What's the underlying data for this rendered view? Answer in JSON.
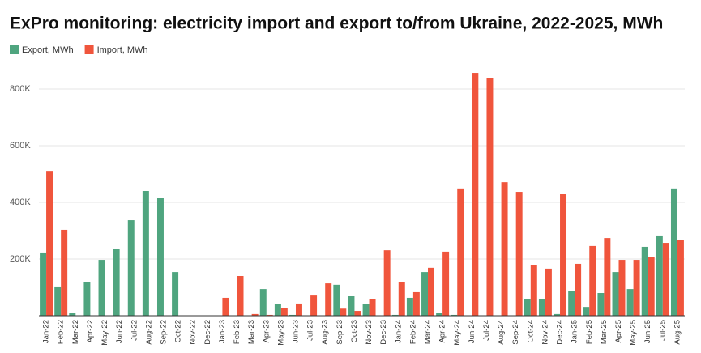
{
  "chart_data": {
    "type": "bar",
    "title": "ExPro monitoring: electricity import and export to/from Ukraine, 2022-2025, MWh",
    "categories": [
      "Jan-22",
      "Feb-22",
      "Mar-22",
      "Apr-22",
      "May-22",
      "Jun-22",
      "Jul-22",
      "Aug-22",
      "Sep-22",
      "Oct-22",
      "Nov-22",
      "Dec-22",
      "Jan-23",
      "Feb-23",
      "Mar-23",
      "Apr-23",
      "May-23",
      "Jun-23",
      "Jul-23",
      "Aug-23",
      "Sep-23",
      "Oct-23",
      "Nov-23",
      "Dec-23",
      "Jan-24",
      "Feb-24",
      "Mar-24",
      "Apr-24",
      "May-24",
      "Jun-24",
      "Jul-24",
      "Aug-24",
      "Sep-24",
      "Oct-24",
      "Nov-24",
      "Dec-24",
      "Jan-25",
      "Feb-25",
      "Mar-25",
      "Apr-25",
      "May-25",
      "Jun-25",
      "Jul-25",
      "Aug-25"
    ],
    "series": [
      {
        "name": "Export, MWh",
        "color": "#4fa57f",
        "values": [
          223000,
          103000,
          9000,
          120000,
          197000,
          237000,
          337000,
          440000,
          417000,
          154000,
          0,
          0,
          0,
          0,
          0,
          94000,
          40000,
          3000,
          0,
          0,
          109000,
          69000,
          40000,
          0,
          3000,
          63000,
          154000,
          11000,
          3000,
          0,
          0,
          0,
          0,
          60000,
          60000,
          6000,
          86000,
          31000,
          80000,
          154000,
          94000,
          243000,
          283000,
          449000
        ]
      },
      {
        "name": "Import, MWh",
        "color": "#f0553c",
        "values": [
          511000,
          303000,
          0,
          0,
          0,
          0,
          0,
          0,
          0,
          0,
          0,
          1000,
          63000,
          140000,
          6000,
          3000,
          26000,
          43000,
          74000,
          114000,
          25000,
          17000,
          60000,
          231000,
          120000,
          83000,
          169000,
          226000,
          449000,
          857000,
          840000,
          471000,
          437000,
          180000,
          166000,
          431000,
          183000,
          246000,
          274000,
          197000,
          197000,
          206000,
          257000,
          266000
        ]
      }
    ],
    "ylim": [
      0,
      880000
    ],
    "yticks": [
      {
        "value": 200000,
        "label": "200K"
      },
      {
        "value": 400000,
        "label": "400K"
      },
      {
        "value": 600000,
        "label": "600K"
      },
      {
        "value": 800000,
        "label": "800K"
      }
    ],
    "grid": true,
    "legend": "top-left"
  }
}
